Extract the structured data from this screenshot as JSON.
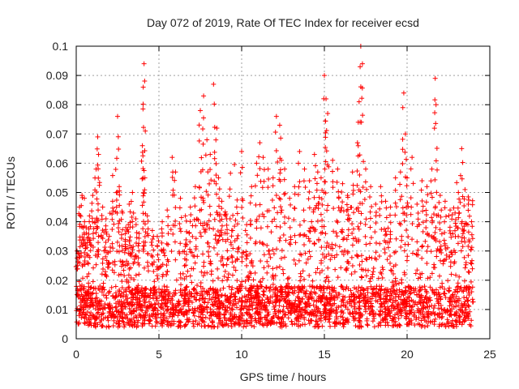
{
  "chart_data": {
    "type": "scatter",
    "title": "Day 072 of 2019, Rate Of TEC Index for receiver ecsd",
    "xlabel": "GPS time / hours",
    "ylabel": "ROTI / TECUs",
    "xlim": [
      0,
      25
    ],
    "ylim": [
      0,
      0.1
    ],
    "x_ticks": [
      "0",
      "5",
      "10",
      "15",
      "20",
      "25"
    ],
    "y_ticks": [
      "0",
      "0.01",
      "0.02",
      "0.03",
      "0.04",
      "0.05",
      "0.06",
      "0.07",
      "0.08",
      "0.09",
      "0.1"
    ],
    "grid": true,
    "marker": "+",
    "color": "#ff0000",
    "series": [
      {
        "x": [
          0.05,
          0.2,
          0.35,
          0.5,
          0.6,
          0.8,
          1.0,
          1.2,
          1.3,
          1.35,
          1.6,
          1.8,
          2.0,
          2.2,
          2.5,
          2.6,
          2.8,
          3.0,
          3.2,
          3.4,
          3.6,
          3.8,
          4.0,
          4.05,
          4.1,
          4.15,
          4.3,
          4.6,
          4.9,
          5.2,
          5.5,
          5.8,
          6.0,
          6.3,
          6.6,
          6.9,
          7.2,
          7.5,
          7.7,
          7.9,
          8.1,
          8.3,
          8.5,
          8.6,
          8.8,
          9.1,
          9.4,
          9.7,
          10.0,
          10.3,
          10.6,
          10.9,
          11.1,
          11.3,
          11.6,
          11.9,
          12.1,
          12.3,
          12.4,
          12.6,
          12.9,
          13.2,
          13.5,
          13.8,
          14.1,
          14.4,
          14.6,
          14.8,
          15.0,
          15.1,
          15.2,
          15.5,
          15.8,
          16.1,
          16.4,
          16.7,
          17.0,
          17.1,
          17.2,
          17.3,
          17.5,
          17.8,
          18.1,
          18.4,
          18.7,
          19.0,
          19.3,
          19.6,
          19.8,
          19.9,
          20.0,
          20.3,
          20.6,
          20.9,
          21.2,
          21.5,
          21.7,
          21.75,
          22.0,
          22.3,
          22.6,
          22.9,
          23.1,
          23.3,
          23.5,
          23.7,
          23.9
        ],
        "y": [
          0.03,
          0.045,
          0.049,
          0.04,
          0.038,
          0.042,
          0.049,
          0.058,
          0.069,
          0.063,
          0.045,
          0.041,
          0.035,
          0.047,
          0.076,
          0.052,
          0.043,
          0.038,
          0.046,
          0.05,
          0.041,
          0.036,
          0.066,
          0.086,
          0.094,
          0.055,
          0.042,
          0.037,
          0.035,
          0.04,
          0.044,
          0.062,
          0.057,
          0.048,
          0.042,
          0.045,
          0.052,
          0.078,
          0.083,
          0.068,
          0.063,
          0.087,
          0.072,
          0.055,
          0.047,
          0.041,
          0.037,
          0.045,
          0.064,
          0.039,
          0.052,
          0.06,
          0.067,
          0.062,
          0.058,
          0.055,
          0.076,
          0.073,
          0.061,
          0.058,
          0.048,
          0.052,
          0.064,
          0.058,
          0.054,
          0.063,
          0.057,
          0.055,
          0.09,
          0.082,
          0.077,
          0.061,
          0.058,
          0.053,
          0.049,
          0.057,
          0.067,
          0.081,
          0.1,
          0.094,
          0.058,
          0.052,
          0.046,
          0.052,
          0.047,
          0.045,
          0.055,
          0.057,
          0.084,
          0.07,
          0.055,
          0.062,
          0.046,
          0.054,
          0.052,
          0.058,
          0.089,
          0.08,
          0.049,
          0.047,
          0.044,
          0.043,
          0.05,
          0.065,
          0.051,
          0.046,
          0.04
        ]
      }
    ]
  }
}
